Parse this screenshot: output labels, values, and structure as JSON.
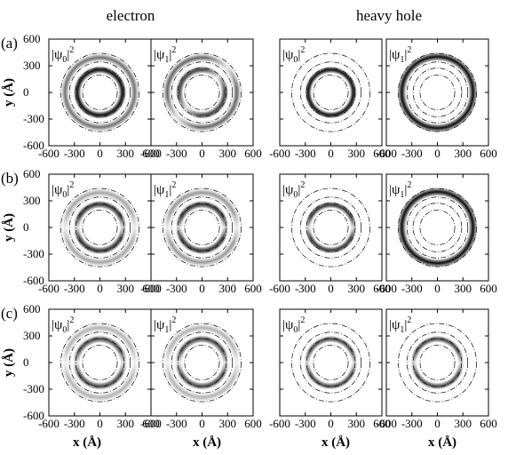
{
  "chart_data": {
    "type": "heatmap",
    "column_titles": [
      {
        "text": "electron",
        "spans_columns": [
          0,
          1
        ]
      },
      {
        "text": "heavy hole",
        "spans_columns": [
          2,
          3
        ]
      }
    ],
    "row_labels": [
      "(a)",
      "(b)",
      "(c)"
    ],
    "panel_labels": [
      {
        "text": "|ψ",
        "sub": "0",
        "sup": "2",
        "bar": "|"
      },
      {
        "text": "|ψ",
        "sub": "1",
        "sup": "2",
        "bar": "|"
      },
      {
        "text": "|ψ",
        "sub": "0",
        "sup": "2",
        "bar": "|"
      },
      {
        "text": "|ψ",
        "sub": "1",
        "sup": "2",
        "bar": "|"
      }
    ],
    "xlabel": "x (Å)",
    "ylabel": "y (Å)",
    "xlim": [
      -600,
      600
    ],
    "ylim": [
      -600,
      600
    ],
    "x_ticks": [
      -600,
      -300,
      0,
      300,
      600
    ],
    "y_ticks": [
      600,
      300,
      0,
      -300,
      -600
    ],
    "boundary_radii": [
      200,
      280,
      350,
      450
    ],
    "panels": [
      {
        "row": 0,
        "col": 0,
        "r_peak": 260,
        "width": 45,
        "intensity": 0.95,
        "angular": "uniform",
        "outer_ring": {
          "r": 400,
          "width": 45,
          "intensity": 0.55
        }
      },
      {
        "row": 0,
        "col": 1,
        "r_peak": 260,
        "width": 45,
        "intensity": 0.75,
        "angular": "lobed-diagonal",
        "outer_ring": {
          "r": 400,
          "width": 45,
          "intensity": 0.6
        }
      },
      {
        "row": 0,
        "col": 2,
        "r_peak": 260,
        "width": 40,
        "intensity": 0.95,
        "angular": "uniform"
      },
      {
        "row": 0,
        "col": 3,
        "r_peak": 410,
        "width": 50,
        "intensity": 0.95,
        "angular": "uniform"
      },
      {
        "row": 1,
        "col": 0,
        "r_peak": 265,
        "width": 45,
        "intensity": 0.8,
        "angular": "lobed-vertical",
        "outer_ring": {
          "r": 400,
          "width": 45,
          "intensity": 0.35
        }
      },
      {
        "row": 1,
        "col": 1,
        "r_peak": 265,
        "width": 45,
        "intensity": 0.8,
        "angular": "lobed-vertical",
        "outer_ring": {
          "r": 400,
          "width": 45,
          "intensity": 0.4
        }
      },
      {
        "row": 1,
        "col": 2,
        "r_peak": 260,
        "width": 40,
        "intensity": 0.8,
        "angular": "lobed-vertical"
      },
      {
        "row": 1,
        "col": 3,
        "r_peak": 410,
        "width": 50,
        "intensity": 0.95,
        "angular": "uniform"
      },
      {
        "row": 2,
        "col": 0,
        "r_peak": 270,
        "width": 45,
        "intensity": 0.7,
        "angular": "lobed-vertical",
        "outer_ring": {
          "r": 400,
          "width": 45,
          "intensity": 0.3
        }
      },
      {
        "row": 2,
        "col": 1,
        "r_peak": 270,
        "width": 45,
        "intensity": 0.7,
        "angular": "lobed-vertical",
        "outer_ring": {
          "r": 400,
          "width": 45,
          "intensity": 0.3
        }
      },
      {
        "row": 2,
        "col": 2,
        "r_peak": 270,
        "width": 40,
        "intensity": 0.7,
        "angular": "lobed-vertical"
      },
      {
        "row": 2,
        "col": 3,
        "r_peak": 270,
        "width": 40,
        "intensity": 0.7,
        "angular": "lobed-vertical"
      }
    ]
  }
}
